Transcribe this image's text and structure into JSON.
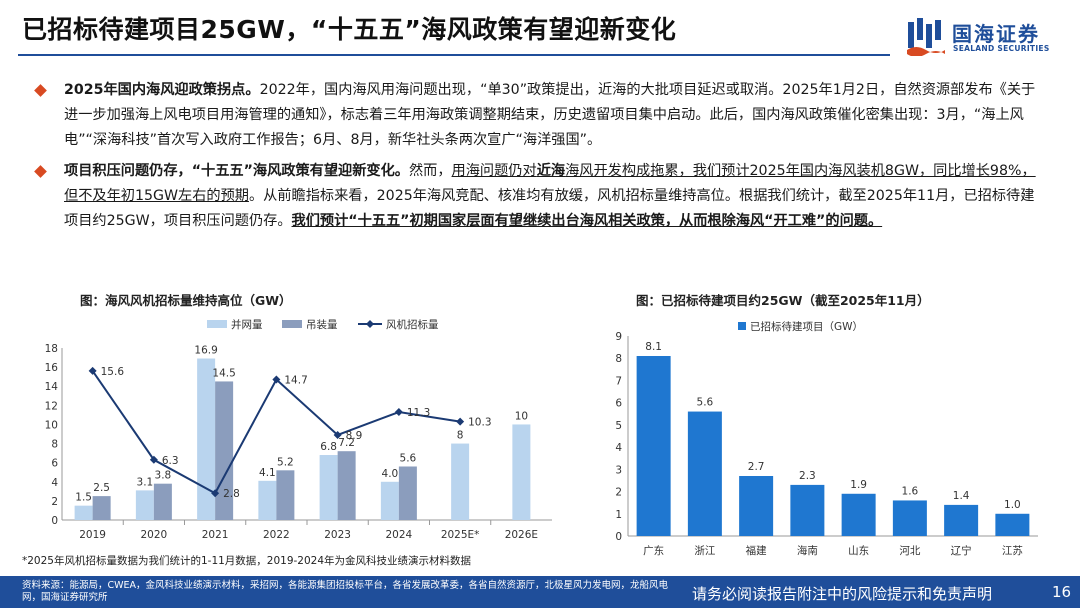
{
  "header": {
    "title": "已招标待建项目25GW，“十五五”海风政策有望迎新变化",
    "logo_cn": "国海证券",
    "logo_en": "SEALAND SECURITIES"
  },
  "bullets": [
    {
      "lead": "2025年国内海风迎政策拐点。",
      "body": "2022年，国内海风用海问题出现，“单30”政策提出，近海的大批项目延迟或取消。2025年1月2日，自然资源部发布《关于进一步加强海上风电项目用海管理的通知》，标志着三年用海政策调整期结束，历史遗留项目集中启动。此后，国内海风政策催化密集出现：3月，“海上风电”“深海科技”首次写入政府工作报告；6月、8月，新华社头条两次宣广“海洋强国”。"
    },
    {
      "lead": "项目积压问题仍存，“十五五”海风政策有望迎新变化。",
      "p1": "然而，",
      "p2": "用海问题仍对",
      "p3": "近海",
      "p4": "海风开发构成拖累，我们预计2025年国内海风装机8GW，同比增长98%，但不及年初15GW左右的预期",
      "p5": "。从前瞻指标来看，2025年海风竞配、核准均有放缓，风机招标量维持高位。根据我们统计，截至2025年11月，已招标待建项目约25GW，项目积压问题仍存。",
      "p6": "我们预计“十五五”初期国家层面有望继续出台海风相关政策，从而根除海风“开工难”的问题。"
    }
  ],
  "colors": {
    "navy": "#1f4e9a",
    "grid_bar": "#b9d4ee",
    "hoist_bar": "#8b9dbd",
    "tender_line": "#1b3a73",
    "region_bar": "#1f77d0",
    "accent": "#d84a22"
  },
  "chart_data": [
    {
      "type": "bar",
      "title": "图：海风风机招标量维持高位（GW）",
      "categories": [
        "2019",
        "2020",
        "2021",
        "2022",
        "2023",
        "2024",
        "2025E*",
        "2026E"
      ],
      "ylim": [
        0,
        18
      ],
      "yticks": [
        0,
        2,
        4,
        6,
        8,
        10,
        12,
        14,
        16,
        18
      ],
      "legend_position": "top",
      "series": [
        {
          "name": "并网量",
          "kind": "bar",
          "values": [
            1.5,
            3.1,
            16.9,
            4.1,
            6.8,
            4.0,
            8,
            10
          ],
          "labels": [
            "1.5",
            "3.1",
            "16.9",
            "4.1",
            "6.8",
            "4.0",
            "8",
            "10"
          ]
        },
        {
          "name": "吊装量",
          "kind": "bar",
          "values": [
            2.5,
            3.8,
            14.5,
            5.2,
            7.2,
            5.6,
            null,
            null
          ],
          "labels": [
            "2.5",
            "3.8",
            "14.5",
            "5.2",
            "7.2",
            "5.6",
            "",
            ""
          ]
        },
        {
          "name": "风机招标量",
          "kind": "line",
          "values": [
            15.6,
            6.3,
            2.8,
            14.7,
            8.9,
            11.3,
            10.3,
            null
          ],
          "labels": [
            "15.6",
            "6.3",
            "2.8",
            "14.7",
            "8.9",
            "11.3",
            "10.3",
            ""
          ]
        }
      ]
    },
    {
      "type": "bar",
      "title": "图：已招标待建项目约25GW（截至2025年11月）",
      "categories": [
        "广东",
        "浙江",
        "福建",
        "海南",
        "山东",
        "河北",
        "辽宁",
        "江苏"
      ],
      "ylim": [
        0,
        9
      ],
      "yticks": [
        0,
        1,
        2,
        3,
        4,
        5,
        6,
        7,
        8,
        9
      ],
      "legend_position": "top-left",
      "series": [
        {
          "name": "已招标待建项目（GW）",
          "values": [
            8.1,
            5.6,
            2.7,
            2.3,
            1.9,
            1.6,
            1.4,
            1.0
          ],
          "labels": [
            "8.1",
            "5.6",
            "2.7",
            "2.3",
            "1.9",
            "1.6",
            "1.4",
            "1.0"
          ]
        }
      ]
    }
  ],
  "footnote": "*2025年风机招标量数据为我们统计的1-11月数据，2019-2024年为金风科技业绩演示材料数据",
  "footer": {
    "source": "资料来源：能源局，CWEA，金风科技业绩演示材料，采招网，各能源集团招投标平台，各省发展改革委，各省自然资源厅，北极星风力发电网，龙船风电网，国海证券研究所",
    "disclaimer": "请务必阅读报告附注中的风险提示和免责声明",
    "page": "16"
  }
}
